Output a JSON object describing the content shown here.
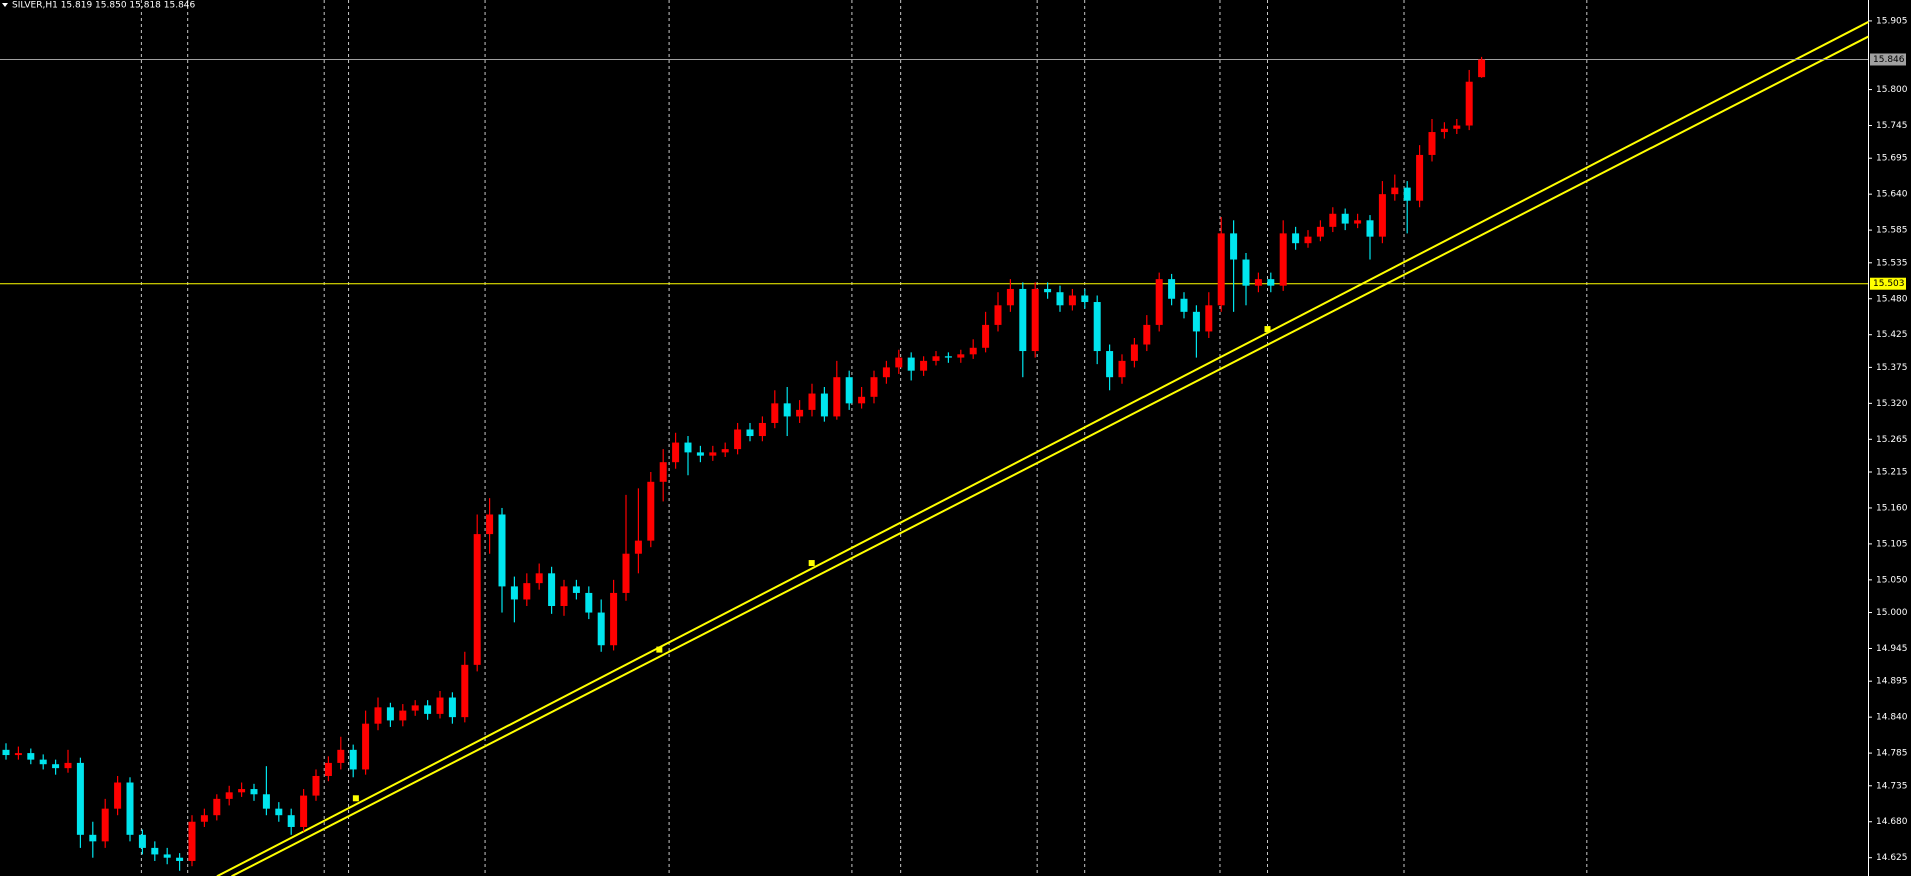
{
  "chart_data": {
    "type": "candlestick",
    "title": "SILVER,H1  15.819 15.850 15.818 15.846",
    "background": "#000000",
    "up_color": "#ff0000",
    "down_color": "#00e5ee",
    "ylim": [
      14.597,
      15.937
    ],
    "yticks": [
      15.905,
      {
        "value": 15.8,
        "label": "15.800"
      },
      15.745,
      15.695,
      {
        "value": 15.64,
        "label": "15.640"
      },
      15.585,
      15.535,
      {
        "value": 15.48,
        "label": "15.480"
      },
      15.425,
      15.375,
      {
        "value": 15.32,
        "label": "15.320"
      },
      15.265,
      15.215,
      {
        "value": 15.16,
        "label": "15.160"
      },
      15.105,
      {
        "value": 15.05,
        "label": "15.050"
      },
      {
        "value": 15,
        "label": "15.000"
      },
      14.945,
      14.895,
      {
        "value": 14.84,
        "label": "14.840"
      },
      14.785,
      14.735,
      {
        "value": 14.68,
        "label": "14.680"
      },
      14.625
    ],
    "hlines": [
      {
        "value": 15.846,
        "color": "#a0a0a0"
      },
      {
        "value": 15.503,
        "color": "#ffff00"
      }
    ],
    "open": [
      14.79,
      14.782,
      14.785,
      14.775,
      14.768,
      14.762,
      14.77,
      14.66,
      14.65,
      14.7,
      14.74,
      14.66,
      14.64,
      14.63,
      14.625,
      14.62,
      14.68,
      14.69,
      14.715,
      14.725,
      14.73,
      14.722,
      14.7,
      14.69,
      14.672,
      14.72,
      14.75,
      14.77,
      14.79,
      14.76,
      14.83,
      14.855,
      14.835,
      14.85,
      14.858,
      14.845,
      14.87,
      14.84,
      14.92,
      15.12,
      15.15,
      15.04,
      15.02,
      15.045,
      15.06,
      15.01,
      15.04,
      15.03,
      15.0,
      14.95,
      15.03,
      15.09,
      15.11,
      15.2,
      15.23,
      15.26,
      15.245,
      15.24,
      15.245,
      15.25,
      15.28,
      15.27,
      15.29,
      15.32,
      15.3,
      15.31,
      15.335,
      15.3,
      15.36,
      15.32,
      15.33,
      15.36,
      15.375,
      15.39,
      15.37,
      15.385,
      15.392,
      15.39,
      15.395,
      15.405,
      15.44,
      15.47,
      15.495,
      15.4,
      15.495,
      15.49,
      15.47,
      15.485,
      15.475,
      15.4,
      15.36,
      15.385,
      15.41,
      15.44,
      15.51,
      15.48,
      15.46,
      15.43,
      15.47,
      15.58,
      15.54,
      15.5,
      15.51,
      15.5,
      15.58,
      15.565,
      15.575,
      15.59,
      15.61,
      15.595,
      15.6,
      15.575,
      15.64,
      15.65,
      15.63,
      15.7,
      15.735,
      15.74,
      15.745,
      15.819
    ],
    "high": [
      14.8,
      14.795,
      14.792,
      14.783,
      14.775,
      14.79,
      14.778,
      14.68,
      14.715,
      14.75,
      14.748,
      14.668,
      14.65,
      14.64,
      14.632,
      14.69,
      14.7,
      14.722,
      14.735,
      14.74,
      14.738,
      14.765,
      14.71,
      14.7,
      14.73,
      14.76,
      14.78,
      14.81,
      14.798,
      14.85,
      14.87,
      14.862,
      14.86,
      14.866,
      14.866,
      14.88,
      14.878,
      14.94,
      15.15,
      15.175,
      15.16,
      15.055,
      15.06,
      15.075,
      15.07,
      15.05,
      15.05,
      15.04,
      15.02,
      15.05,
      15.18,
      15.19,
      15.215,
      15.25,
      15.275,
      15.27,
      15.255,
      15.255,
      15.26,
      15.29,
      15.29,
      15.3,
      15.34,
      15.345,
      15.325,
      15.35,
      15.345,
      15.385,
      15.37,
      15.345,
      15.37,
      15.385,
      15.402,
      15.398,
      15.392,
      15.4,
      15.398,
      15.402,
      15.418,
      15.46,
      15.49,
      15.51,
      15.505,
      15.505,
      15.505,
      15.5,
      15.495,
      15.495,
      15.485,
      15.41,
      15.395,
      15.42,
      15.455,
      15.52,
      15.518,
      15.49,
      15.47,
      15.49,
      15.605,
      15.6,
      15.55,
      15.52,
      15.52,
      15.6,
      15.59,
      15.585,
      15.6,
      15.62,
      15.618,
      15.61,
      15.608,
      15.66,
      15.67,
      15.66,
      15.715,
      15.755,
      15.75,
      15.755,
      15.83,
      15.85
    ],
    "low": [
      14.775,
      14.775,
      14.768,
      14.76,
      14.752,
      14.755,
      14.64,
      14.625,
      14.64,
      14.69,
      14.65,
      14.63,
      14.62,
      14.615,
      14.605,
      14.612,
      14.672,
      14.682,
      14.705,
      14.718,
      14.712,
      14.69,
      14.68,
      14.66,
      14.665,
      14.712,
      14.742,
      14.76,
      14.748,
      14.752,
      14.82,
      14.825,
      14.826,
      14.842,
      14.836,
      14.838,
      14.83,
      14.832,
      14.91,
      15.09,
      15.0,
      14.985,
      15.01,
      15.035,
      14.998,
      14.995,
      15.02,
      14.99,
      14.94,
      14.942,
      15.018,
      15.06,
      15.1,
      15.17,
      15.22,
      15.21,
      15.23,
      15.232,
      15.238,
      15.242,
      15.262,
      15.262,
      15.282,
      15.27,
      15.29,
      15.3,
      15.292,
      15.295,
      15.31,
      15.312,
      15.32,
      15.35,
      15.365,
      15.355,
      15.362,
      15.378,
      15.382,
      15.382,
      15.388,
      15.398,
      15.43,
      15.46,
      15.36,
      15.39,
      15.48,
      15.46,
      15.462,
      15.465,
      15.38,
      15.34,
      15.35,
      15.375,
      15.4,
      15.43,
      15.47,
      15.45,
      15.39,
      15.42,
      15.46,
      15.46,
      15.47,
      15.49,
      15.49,
      15.492,
      15.555,
      15.558,
      15.568,
      15.582,
      15.585,
      15.588,
      15.54,
      15.565,
      15.63,
      15.58,
      15.62,
      15.69,
      15.725,
      15.732,
      15.738,
      15.818
    ],
    "close": [
      14.782,
      14.785,
      14.775,
      14.768,
      14.762,
      14.77,
      14.66,
      14.65,
      14.7,
      14.74,
      14.66,
      14.64,
      14.63,
      14.625,
      14.62,
      14.68,
      14.69,
      14.715,
      14.725,
      14.73,
      14.722,
      14.7,
      14.69,
      14.672,
      14.72,
      14.75,
      14.77,
      14.79,
      14.76,
      14.83,
      14.855,
      14.835,
      14.85,
      14.858,
      14.845,
      14.87,
      14.84,
      14.92,
      15.12,
      15.15,
      15.04,
      15.02,
      15.045,
      15.06,
      15.01,
      15.04,
      15.03,
      15.0,
      14.95,
      15.03,
      15.09,
      15.11,
      15.2,
      15.23,
      15.26,
      15.245,
      15.24,
      15.245,
      15.25,
      15.28,
      15.27,
      15.29,
      15.32,
      15.3,
      15.31,
      15.335,
      15.3,
      15.36,
      15.32,
      15.33,
      15.36,
      15.375,
      15.39,
      15.37,
      15.385,
      15.392,
      15.39,
      15.395,
      15.405,
      15.44,
      15.47,
      15.495,
      15.4,
      15.495,
      15.49,
      15.47,
      15.485,
      15.475,
      15.4,
      15.36,
      15.385,
      15.41,
      15.44,
      15.51,
      15.48,
      15.46,
      15.43,
      15.47,
      15.58,
      15.54,
      15.5,
      15.51,
      15.5,
      15.58,
      15.565,
      15.575,
      15.59,
      15.61,
      15.595,
      15.6,
      15.575,
      15.64,
      15.65,
      15.63,
      15.7,
      15.735,
      15.74,
      15.745,
      15.812,
      15.846
    ]
  }
}
